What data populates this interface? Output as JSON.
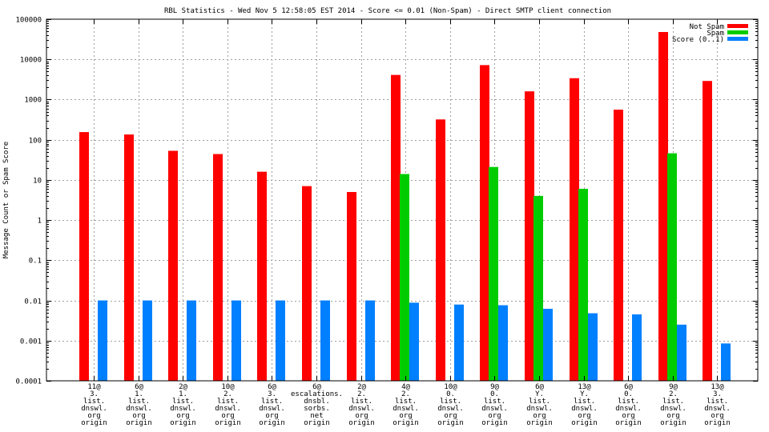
{
  "chart_data": {
    "type": "bar",
    "title": "RBL Statistics - Wed Nov  5 12:58:05 EST 2014 - Score <= 0.01 (Non-Spam) - Direct SMTP client connection",
    "ylabel": "Message Count or Spam Score",
    "xlabel": "",
    "yscale": "log",
    "ylim": [
      0.0001,
      100000
    ],
    "grid": true,
    "legend_position": "top-right",
    "yticks": [
      "0.0001",
      "0.001",
      "0.01",
      "0.1",
      "1",
      "10",
      "100",
      "1000",
      "10000",
      "100000"
    ],
    "categories": [
      [
        "11@",
        "3.",
        "list.",
        "dnswl.",
        "org",
        "origin"
      ],
      [
        "6@",
        "1.",
        "list.",
        "dnswl.",
        "org",
        "origin"
      ],
      [
        "2@",
        "1.",
        "list.",
        "dnswl.",
        "org",
        "origin"
      ],
      [
        "10@",
        "2.",
        "list.",
        "dnswl.",
        "org",
        "origin"
      ],
      [
        "6@",
        "3.",
        "list.",
        "dnswl.",
        "org",
        "origin"
      ],
      [
        "6@",
        "escalations.",
        "dnsbl.",
        "sorbs.",
        "net",
        "origin"
      ],
      [
        "2@",
        "2.",
        "list.",
        "dnswl.",
        "org",
        "origin"
      ],
      [
        "4@",
        "2.",
        "list.",
        "dnswl.",
        "org",
        "origin"
      ],
      [
        "10@",
        "0.",
        "list.",
        "dnswl.",
        "org",
        "origin"
      ],
      [
        "9@",
        "0.",
        "list.",
        "dnswl.",
        "org",
        "origin"
      ],
      [
        "6@",
        "Y.",
        "list.",
        "dnswl.",
        "org",
        "origin"
      ],
      [
        "13@",
        "Y.",
        "list.",
        "dnswl.",
        "org",
        "origin"
      ],
      [
        "6@",
        "0.",
        "list.",
        "dnswl.",
        "org",
        "origin"
      ],
      [
        "9@",
        "2.",
        "list.",
        "dnswl.",
        "org",
        "origin"
      ],
      [
        "13@",
        "3.",
        "list.",
        "dnswl.",
        "org",
        "origin"
      ]
    ],
    "series": [
      {
        "name": "Not Spam",
        "color": "#ff0000",
        "values": [
          155,
          135,
          53,
          44,
          16,
          7,
          5,
          4100,
          320,
          7200,
          1600,
          3400,
          560,
          48000,
          2900
        ]
      },
      {
        "name": "Spam",
        "color": "#00cc00",
        "values": [
          null,
          null,
          null,
          null,
          null,
          null,
          null,
          14,
          null,
          21,
          4,
          6,
          null,
          46,
          null
        ]
      },
      {
        "name": "Score (0..1)",
        "color": "#0080ff",
        "values": [
          0.01,
          0.01,
          0.01,
          0.01,
          0.01,
          0.01,
          0.01,
          0.0088,
          0.0079,
          0.0076,
          0.0062,
          0.0048,
          0.0045,
          0.0025,
          0.00085
        ]
      }
    ]
  }
}
